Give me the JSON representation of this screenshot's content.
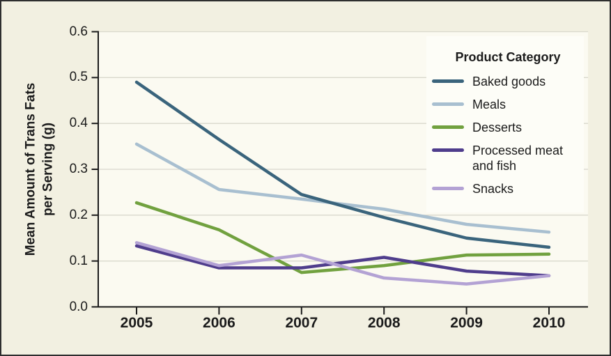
{
  "chart_data": {
    "type": "line",
    "title": "",
    "legend_title": "Product Category",
    "legend_position": "top-right",
    "ylabel": "Mean Amount of Trans Fats per Serving (g)",
    "ylabel_lines": [
      "Mean Amount of Trans Fats",
      "per Serving (g)"
    ],
    "xlabel": "",
    "x": [
      2005,
      2006,
      2007,
      2008,
      2009,
      2010
    ],
    "x_labels": [
      "2005",
      "2006",
      "2007",
      "2008",
      "2009",
      "2010"
    ],
    "y_ticks": [
      0.0,
      0.1,
      0.2,
      0.3,
      0.4,
      0.5,
      0.6
    ],
    "y_tick_labels": [
      "0.0",
      "0.1",
      "0.2",
      "0.3",
      "0.4",
      "0.5",
      "0.6"
    ],
    "ylim": [
      0,
      0.6
    ],
    "grid": "horizontal",
    "series": [
      {
        "name": "Baked goods",
        "color": "#3a647c",
        "values": [
          0.49,
          0.365,
          0.245,
          0.195,
          0.15,
          0.13
        ]
      },
      {
        "name": "Meals",
        "color": "#a8bfd0",
        "values": [
          0.355,
          0.256,
          0.235,
          0.213,
          0.18,
          0.163
        ]
      },
      {
        "name": "Desserts",
        "color": "#71a13f",
        "values": [
          0.227,
          0.168,
          0.075,
          0.09,
          0.113,
          0.115
        ]
      },
      {
        "name": "Processed meat and fish",
        "color": "#4f3d8c",
        "values": [
          0.133,
          0.085,
          0.085,
          0.108,
          0.078,
          0.068
        ]
      },
      {
        "name": "Snacks",
        "color": "#b3a2d4",
        "values": [
          0.14,
          0.09,
          0.113,
          0.063,
          0.05,
          0.068
        ]
      }
    ],
    "style": {
      "background": "#f2f0e1",
      "plot_background": "#fbfaf1",
      "legend_background": "#fdfdf7",
      "gridline_color": "#d9d8cc",
      "axis_color": "#1b1b1b",
      "border_color": "#2e2e2e"
    }
  }
}
